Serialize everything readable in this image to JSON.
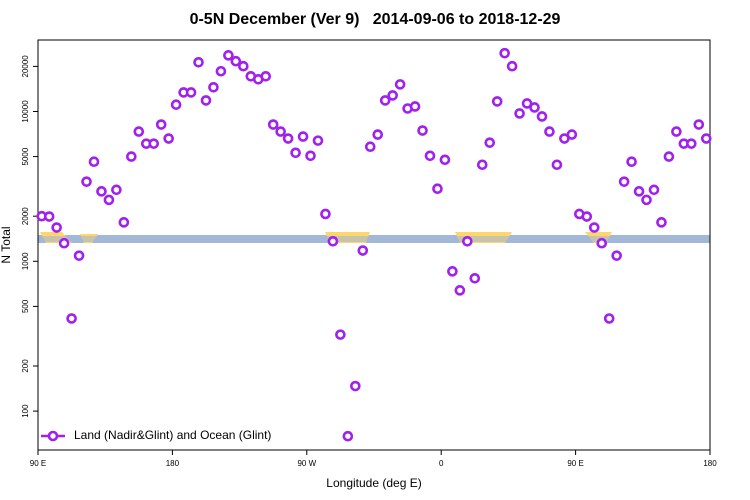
{
  "chart_data": {
    "type": "scatter",
    "title": "0-5N December (Ver 9)   2014-09-06 to 2018-12-29",
    "xlabel": "Longitude (deg E)",
    "ylabel": "N Total",
    "log_y": true,
    "legend": "bottom-left",
    "xlim": [
      90,
      540
    ],
    "xticks": [
      {
        "value": 90,
        "label": "90 E"
      },
      180,
      {
        "value": 270,
        "label": "90 W"
      },
      {
        "value": 360,
        "label": "0"
      },
      {
        "value": 450,
        "label": "90 E"
      },
      {
        "value": 540,
        "label": "180"
      }
    ],
    "ylim": [
      55,
      30000
    ],
    "yticks": [
      100,
      200,
      500,
      1000,
      2000,
      5000,
      10000,
      20000
    ],
    "series": [
      {
        "name": "Land (Nadir&Glint) and Ocean (Glint)",
        "color": "#a020f0",
        "x": [
          92.5,
          97.5,
          102.5,
          107.5,
          112.5,
          117.5,
          122.5,
          127.5,
          132.5,
          137.5,
          142.5,
          147.5,
          152.5,
          157.5,
          162.5,
          167.5,
          172.5,
          177.5,
          182.5,
          187.5,
          192.5,
          197.5,
          202.5,
          207.5,
          212.5,
          217.5,
          222.5,
          227.5,
          232.5,
          237.5,
          242.5,
          247.5,
          252.5,
          257.5,
          262.5,
          267.5,
          272.5,
          277.5,
          282.5,
          287.5,
          292.5,
          297.5,
          302.5,
          307.5,
          312.5,
          317.5,
          322.5,
          327.5,
          332.5,
          337.5,
          342.5,
          347.5,
          352.5,
          357.5,
          362.5,
          367.5,
          372.5,
          377.5,
          382.5,
          387.5,
          392.5,
          397.5,
          402.5,
          407.5,
          412.5,
          417.5,
          422.5,
          427.5,
          432.5,
          437.5,
          442.5,
          447.5,
          452.5,
          457.5,
          462.5,
          467.5,
          472.5,
          477.5,
          482.5,
          487.5,
          492.5,
          497.5,
          502.5,
          507.5,
          512.5,
          517.5,
          522.5,
          527.5,
          532.5,
          537.5
        ],
        "values": [
          2000,
          1990,
          1680,
          1320,
          415,
          1090,
          3400,
          4620,
          2930,
          2570,
          3000,
          1820,
          5000,
          7340,
          6100,
          6100,
          8180,
          6600,
          11100,
          13400,
          13400,
          21300,
          11850,
          14500,
          18560,
          23700,
          21650,
          20050,
          17170,
          16400,
          17170,
          8180,
          7340,
          6600,
          5300,
          6800,
          5060,
          6390,
          2070,
          1360,
          324,
          68,
          147,
          1180,
          5820,
          7010,
          11850,
          12800,
          15170,
          10470,
          10800,
          7460,
          5060,
          3050,
          4760,
          857,
          640,
          1360,
          770,
          4410,
          6190,
          11670,
          24500,
          20050,
          9700,
          11310,
          10640,
          9260,
          7340,
          4410,
          6600,
          7010,
          2070,
          1990,
          1680,
          1320,
          415,
          1090,
          3400,
          4620,
          2930,
          2570,
          3000,
          1820,
          5000,
          7340,
          6100,
          6100,
          8180,
          6600
        ]
      }
    ]
  }
}
